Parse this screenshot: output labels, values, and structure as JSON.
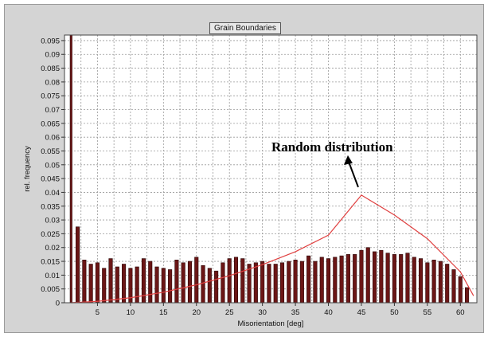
{
  "chart_data": {
    "type": "bar",
    "title": "Grain Boundaries",
    "xlabel": "Misorientation [deg]",
    "ylabel": "rel. frequency",
    "xlim": [
      0,
      62.5
    ],
    "ylim": [
      0,
      0.097
    ],
    "x_ticks": [
      "5",
      "10",
      "15",
      "20",
      "25",
      "30",
      "35",
      "40",
      "45",
      "50",
      "55",
      "60"
    ],
    "y_ticks": [
      "0",
      "0.005",
      "0.01",
      "0.015",
      "0.02",
      "0.025",
      "0.03",
      "0.035",
      "0.04",
      "0.045",
      "0.05",
      "0.055",
      "0.06",
      "0.065",
      "0.07",
      "0.075",
      "0.08",
      "0.085",
      "0.09",
      "0.095"
    ],
    "grid": true,
    "series": [
      {
        "x": [
          1,
          2,
          3,
          4,
          5,
          6,
          7,
          8,
          9,
          10,
          11,
          12,
          13,
          14,
          15,
          16,
          17,
          18,
          19,
          20,
          21,
          22,
          23,
          24,
          25,
          26,
          27,
          28,
          29,
          30,
          31,
          32,
          33,
          34,
          35,
          36,
          37,
          38,
          39,
          40,
          41,
          42,
          43,
          44,
          45,
          46,
          47,
          48,
          49,
          50,
          51,
          52,
          53,
          54,
          55,
          56,
          57,
          58,
          59,
          60,
          61,
          62
        ],
        "values": [
          0.097,
          0.0275,
          0.0155,
          0.014,
          0.0145,
          0.0125,
          0.016,
          0.013,
          0.014,
          0.0125,
          0.013,
          0.016,
          0.015,
          0.013,
          0.0125,
          0.012,
          0.0155,
          0.0145,
          0.015,
          0.0165,
          0.0135,
          0.0125,
          0.0115,
          0.0145,
          0.016,
          0.0165,
          0.016,
          0.014,
          0.0145,
          0.015,
          0.014,
          0.014,
          0.0145,
          0.015,
          0.0155,
          0.015,
          0.017,
          0.015,
          0.0165,
          0.016,
          0.0165,
          0.017,
          0.0175,
          0.0175,
          0.019,
          0.02,
          0.0185,
          0.019,
          0.018,
          0.0175,
          0.0175,
          0.018,
          0.0165,
          0.016,
          0.0145,
          0.0155,
          0.015,
          0.014,
          0.012,
          0.0095,
          0.0055,
          0.0
        ]
      },
      {
        "type": "line",
        "x": [
          1,
          5,
          10,
          15,
          20,
          25,
          30,
          35,
          40,
          45,
          50,
          55,
          60,
          62
        ],
        "values": [
          0.0,
          0.0005,
          0.0018,
          0.0038,
          0.0065,
          0.0098,
          0.0138,
          0.0185,
          0.0245,
          0.039,
          0.0318,
          0.0232,
          0.0112,
          0.0025
        ]
      }
    ],
    "annotations": [
      {
        "text": "Random distribution",
        "x": 45,
        "y": 0.039
      }
    ]
  },
  "colors": {
    "bar_fill": "#6b1616",
    "bar_edge": "#2a0606",
    "curve": "#e04040",
    "grid": "#9a9a9a",
    "plot_bg": "#ffffff",
    "panel_bg": "#d4d4d4"
  }
}
